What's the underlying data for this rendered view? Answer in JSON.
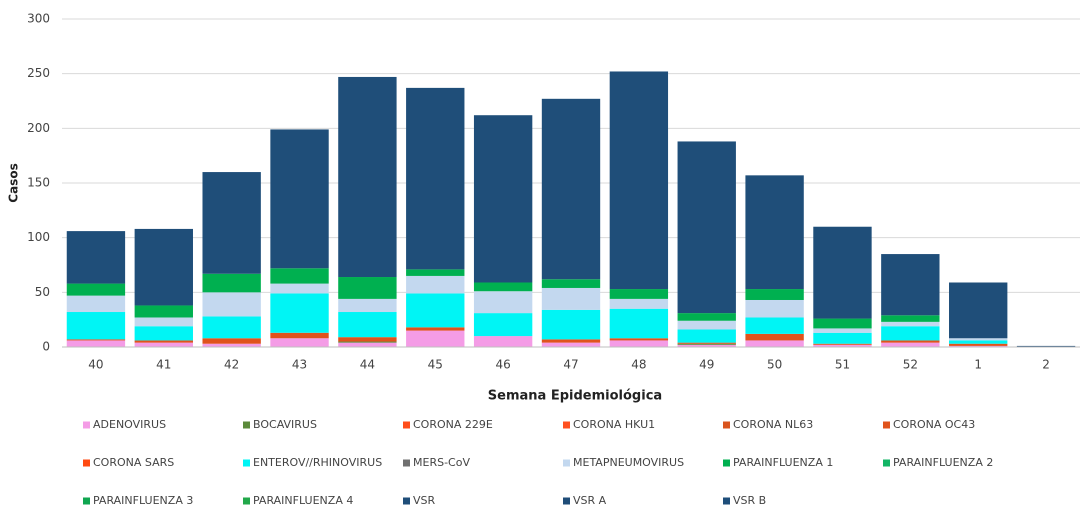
{
  "chart_data": {
    "type": "stacked_bar",
    "y_label": "Casos",
    "x_label": "Semana Epidemiológica",
    "categories": [
      "40",
      "41",
      "42",
      "43",
      "44",
      "45",
      "46",
      "47",
      "48",
      "49",
      "50",
      "51",
      "52",
      "1",
      "2"
    ],
    "ylim": [
      0,
      300
    ],
    "yticks": [
      0,
      50,
      100,
      150,
      200,
      250,
      300
    ],
    "grid": true,
    "series": [
      {
        "name": "ADENOVIRUS",
        "color": "#f49ce6",
        "values": [
          6,
          4,
          3,
          8,
          4,
          15,
          10,
          4,
          6,
          2,
          6,
          2,
          4,
          1,
          0
        ]
      },
      {
        "name": "BOCAVIRUS",
        "color": "#5b8a3a",
        "values": [
          0,
          0,
          0,
          0,
          1,
          0,
          0,
          0,
          0,
          1,
          0,
          0,
          0,
          0,
          0
        ]
      },
      {
        "name": "CORONA 229E",
        "color": "#ff4d1a",
        "values": [
          0,
          0,
          0,
          0,
          0,
          0,
          0,
          0,
          0,
          0,
          0,
          0,
          0,
          0,
          0
        ]
      },
      {
        "name": "CORONA HKU1",
        "color": "#ff5020",
        "values": [
          0,
          0,
          0,
          0,
          0,
          0,
          0,
          0,
          0,
          0,
          0,
          0,
          0,
          0,
          0
        ]
      },
      {
        "name": "CORONA NL63",
        "color": "#d9541e",
        "values": [
          0,
          0,
          0,
          0,
          0,
          0,
          0,
          0,
          0,
          0,
          0,
          0,
          0,
          0,
          0
        ]
      },
      {
        "name": "CORONA OC43",
        "color": "#e0531c",
        "values": [
          1,
          2,
          5,
          5,
          4,
          3,
          0,
          3,
          2,
          1,
          6,
          1,
          2,
          2,
          0
        ]
      },
      {
        "name": "CORONA SARS",
        "color": "#ff4a10",
        "values": [
          0,
          0,
          0,
          0,
          0,
          0,
          0,
          0,
          0,
          0,
          0,
          0,
          0,
          0,
          0
        ]
      },
      {
        "name": "ENTEROV//RHINOVIRUS",
        "color": "#00f5f5",
        "values": [
          25,
          13,
          20,
          36,
          23,
          31,
          21,
          27,
          27,
          12,
          15,
          10,
          13,
          3,
          0
        ]
      },
      {
        "name": "MERS-CoV",
        "color": "#707070",
        "values": [
          0,
          0,
          0,
          0,
          0,
          0,
          0,
          0,
          0,
          0,
          0,
          0,
          0,
          0,
          0
        ]
      },
      {
        "name": "METAPNEUMOVIRUS",
        "color": "#c3d8ef",
        "values": [
          15,
          8,
          22,
          9,
          12,
          16,
          20,
          20,
          9,
          8,
          16,
          4,
          4,
          2,
          0
        ]
      },
      {
        "name": "PARAINFLUENZA 1",
        "color": "#00b050",
        "values": [
          11,
          11,
          17,
          14,
          20,
          6,
          8,
          8,
          9,
          7,
          10,
          9,
          6,
          0,
          0
        ]
      },
      {
        "name": "PARAINFLUENZA 2",
        "color": "#12b565",
        "values": [
          0,
          0,
          0,
          0,
          0,
          0,
          0,
          0,
          0,
          0,
          0,
          0,
          0,
          0,
          0
        ]
      },
      {
        "name": "PARAINFLUENZA 3",
        "color": "#10a650",
        "values": [
          0,
          0,
          0,
          0,
          0,
          0,
          0,
          0,
          0,
          0,
          0,
          0,
          0,
          0,
          0
        ]
      },
      {
        "name": "PARAINFLUENZA 4",
        "color": "#22a84a",
        "values": [
          0,
          0,
          0,
          0,
          0,
          0,
          0,
          0,
          0,
          0,
          0,
          0,
          0,
          0,
          0
        ]
      },
      {
        "name": "VSR",
        "color": "#1f4e79",
        "values": [
          48,
          70,
          93,
          127,
          183,
          166,
          153,
          165,
          199,
          157,
          104,
          84,
          56,
          51,
          1
        ]
      },
      {
        "name": "VSR A",
        "color": "#1f4d78",
        "values": [
          0,
          0,
          0,
          0,
          0,
          0,
          0,
          0,
          0,
          0,
          0,
          0,
          0,
          0,
          0
        ]
      },
      {
        "name": "VSR B",
        "color": "#1e4e7a",
        "values": [
          0,
          0,
          0,
          0,
          0,
          0,
          0,
          0,
          0,
          0,
          0,
          0,
          0,
          0,
          0
        ]
      }
    ]
  }
}
